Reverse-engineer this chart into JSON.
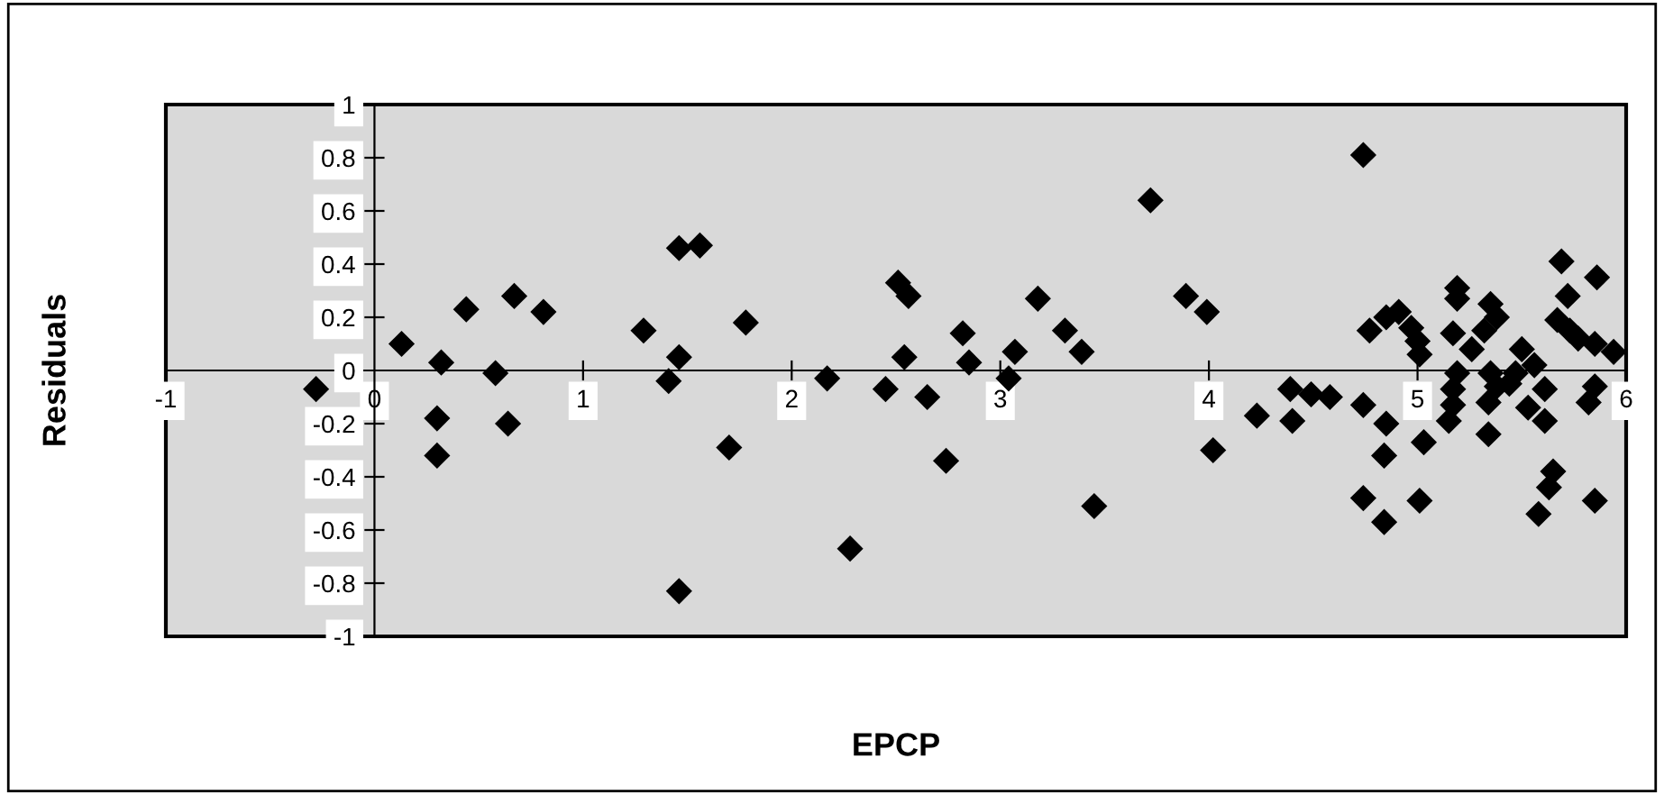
{
  "chart_data": {
    "type": "scatter",
    "xlabel": "EPCP",
    "ylabel": "Residuals",
    "xlim": [
      -1,
      6
    ],
    "ylim": [
      -1,
      1
    ],
    "xticks": [
      -1,
      0,
      1,
      2,
      3,
      4,
      5,
      6
    ],
    "yticks": [
      -1,
      -0.8,
      -0.6,
      -0.4,
      -0.2,
      0,
      0.2,
      0.4,
      0.6,
      0.8,
      1
    ],
    "grid": false,
    "marker": "diamond",
    "series": [
      {
        "color": "#000000",
        "x": [
          -0.28,
          0.13,
          0.32,
          0.3,
          0.3,
          0.44,
          0.58,
          0.67,
          0.64,
          0.81,
          1.29,
          1.41,
          1.46,
          1.46,
          1.46,
          1.56,
          1.78,
          1.7,
          2.17,
          2.28,
          2.45,
          2.51,
          2.56,
          2.54,
          2.65,
          2.74,
          2.82,
          2.85,
          3.04,
          3.07,
          3.18,
          3.31,
          3.39,
          3.45,
          3.72,
          3.89,
          3.99,
          4.02,
          4.23,
          4.39,
          4.4,
          4.49,
          4.58,
          4.74,
          4.77,
          4.74,
          4.74,
          4.85,
          4.84,
          4.84,
          5.01,
          4.85,
          4.91,
          4.97,
          5.0,
          5.01,
          5.03,
          5.19,
          5.19,
          5.17,
          5.26,
          5.19,
          5.17,
          5.17,
          5.15,
          5.35,
          5.38,
          5.32,
          5.35,
          5.38,
          5.34,
          5.34,
          5.5,
          5.47,
          5.44,
          5.56,
          5.53,
          5.61,
          5.61,
          5.65,
          5.63,
          5.58,
          5.69,
          5.86,
          5.72,
          5.67,
          5.73,
          5.77,
          5.85,
          5.94,
          5.85,
          5.82,
          5.85
        ],
        "values": [
          -0.07,
          0.1,
          0.03,
          -0.18,
          -0.32,
          0.23,
          -0.01,
          0.28,
          -0.2,
          0.22,
          0.15,
          -0.04,
          0.05,
          0.46,
          -0.83,
          0.47,
          0.18,
          -0.29,
          -0.03,
          -0.67,
          -0.07,
          0.33,
          0.28,
          0.05,
          -0.1,
          -0.34,
          0.14,
          0.03,
          -0.03,
          0.07,
          0.27,
          0.15,
          0.07,
          -0.51,
          0.64,
          0.28,
          0.22,
          -0.3,
          -0.17,
          -0.07,
          -0.19,
          -0.09,
          -0.1,
          0.81,
          0.15,
          -0.13,
          -0.48,
          -0.2,
          -0.32,
          -0.57,
          -0.49,
          0.2,
          0.22,
          0.16,
          0.11,
          0.06,
          -0.27,
          0.31,
          0.27,
          0.14,
          0.08,
          -0.01,
          -0.07,
          -0.13,
          -0.19,
          0.25,
          0.2,
          0.15,
          -0.01,
          -0.06,
          -0.12,
          -0.24,
          0.08,
          -0.01,
          -0.05,
          0.02,
          -0.14,
          -0.07,
          -0.19,
          -0.38,
          -0.44,
          -0.54,
          0.41,
          0.35,
          0.28,
          0.19,
          0.15,
          0.12,
          0.1,
          0.07,
          -0.06,
          -0.12,
          -0.49
        ]
      }
    ]
  }
}
